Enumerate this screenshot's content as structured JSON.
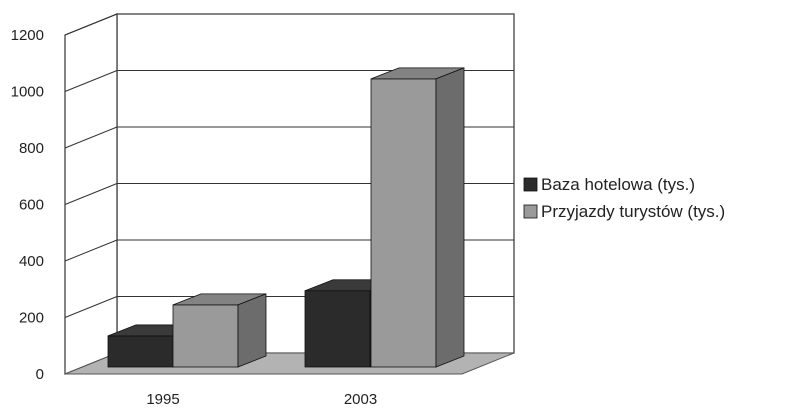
{
  "chart_data": {
    "type": "bar",
    "title": "",
    "xlabel": "",
    "ylabel": "",
    "categories": [
      "1995",
      "2003"
    ],
    "series": [
      {
        "name": "Baza hotelowa (tys.)",
        "values": [
          110,
          270
        ],
        "color": "#2b2b2b"
      },
      {
        "name": "Przyjazdy turystów (tys.)",
        "values": [
          220,
          1020
        ],
        "color": "#9a9a9a"
      }
    ],
    "ylim": [
      0,
      1200
    ],
    "yticks": [
      0,
      200,
      400,
      600,
      800,
      1000,
      1200
    ],
    "grid": true,
    "legend": "right",
    "style": "3d-bar"
  }
}
